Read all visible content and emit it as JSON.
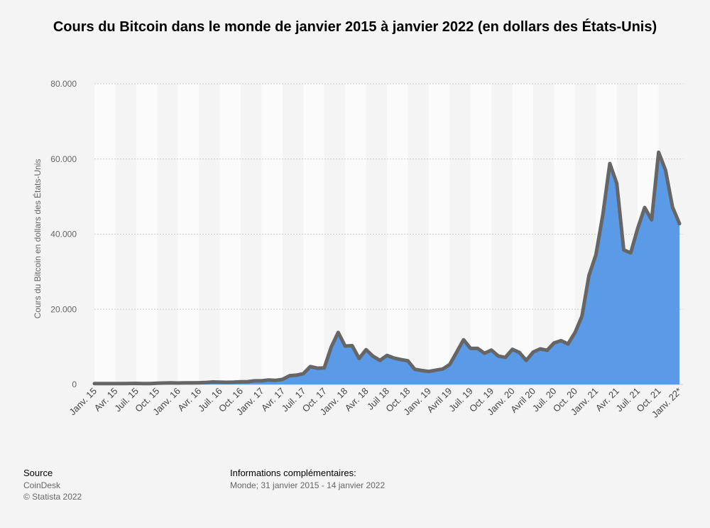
{
  "chart_data": {
    "type": "area",
    "title": "Cours du Bitcoin dans le monde de janvier 2015 à janvier 2022 (en dollars des États-Unis)",
    "ylabel": "Cours du Bitcoin en dollars des États-Unis",
    "xlabel": "",
    "ylim": [
      0,
      80000
    ],
    "yticks": [
      "0",
      "20.000",
      "40.000",
      "60.000",
      "80.000"
    ],
    "xtick_labels": [
      "Janv. 15",
      "Avr. 15",
      "Juil. 15",
      "Oct. 15",
      "Janv. 16",
      "Avr. 16",
      "Juil. 16",
      "Oct. 16",
      "Janv. 17",
      "Avr. 17",
      "Juil. 17",
      "Oct. 17",
      "Janv. 18",
      "Avr. 18",
      "Juil 18",
      "Oct. 18",
      "Janv. 19",
      "Avril 19",
      "Juil. 19",
      "Oct. 19",
      "Janv. 20",
      "Avril 20",
      "Juil. 20",
      "Oct. 20",
      "Janv. 21",
      "Avr. 21",
      "Juil. 21",
      "Oct. 21",
      "Janv. 22*"
    ],
    "grid": true,
    "series": [
      {
        "name": "",
        "color": "#5a9ae6",
        "line_color": "#666666",
        "values": [
          230,
          255,
          245,
          235,
          230,
          265,
          285,
          230,
          235,
          315,
          375,
          430,
          370,
          435,
          415,
          450,
          530,
          670,
          625,
          575,
          610,
          700,
          745,
          965,
          970,
          1190,
          1080,
          1350,
          2300,
          2480,
          2870,
          4760,
          4340,
          4400,
          9950,
          13850,
          10220,
          10320,
          6930,
          9240,
          7500,
          6400,
          7730,
          7030,
          6630,
          6300,
          4020,
          3700,
          3460,
          3800,
          4100,
          5300,
          8550,
          11900,
          9600,
          9600,
          8300,
          9150,
          7550,
          7200,
          9350,
          8530,
          6400,
          8630,
          9450,
          9100,
          11050,
          11650,
          10780,
          13800,
          18200,
          29000,
          34500,
          45200,
          58800,
          53500,
          35800,
          35000,
          41500,
          47100,
          43800,
          61800,
          57000,
          47200,
          42800
        ]
      }
    ]
  },
  "footer": {
    "source_heading": "Source",
    "source_name": "CoinDesk",
    "copyright": "© Statista 2022",
    "info_heading": "Informations complémentaires:",
    "info_text": "Monde; 31 janvier 2015 - 14 janvier 2022"
  }
}
